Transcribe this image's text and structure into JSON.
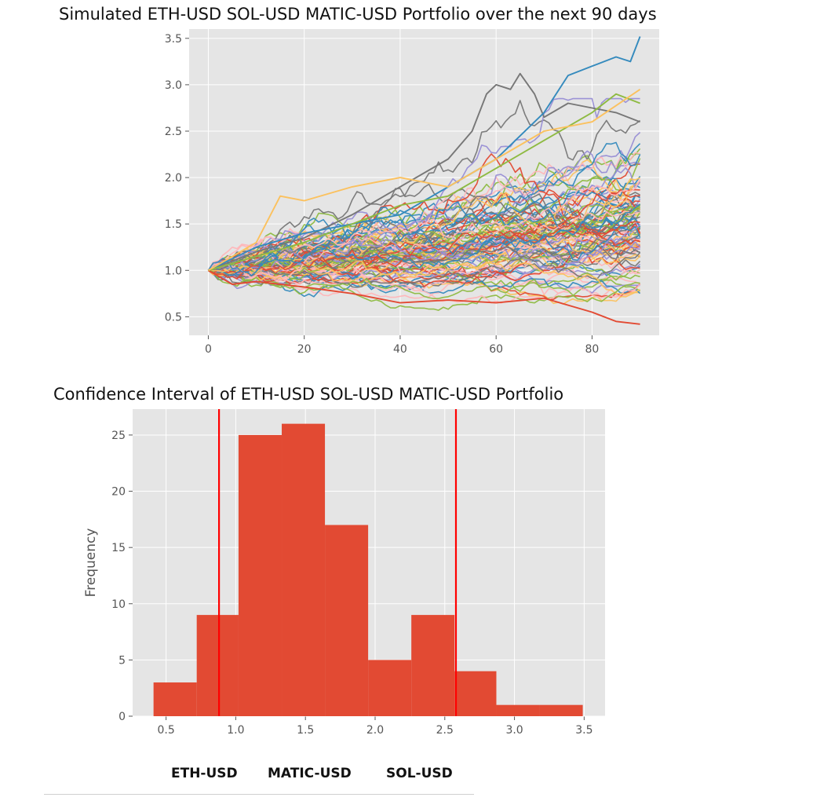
{
  "chart_data": [
    {
      "type": "line",
      "title": "Simulated ETH-USD SOL-USD MATIC-USD Portfolio over the next 90 days",
      "xlabel": "",
      "ylabel": "",
      "xlim": [
        -4,
        94
      ],
      "ylim": [
        0.3,
        3.6
      ],
      "x_ticks": [
        0,
        20,
        40,
        60,
        80
      ],
      "y_ticks": [
        0.5,
        1.0,
        1.5,
        2.0,
        2.5,
        3.0,
        3.5
      ],
      "x_tick_labels": [
        "0",
        "20",
        "40",
        "60",
        "80"
      ],
      "y_tick_labels": [
        "0.5",
        "1.0",
        "1.5",
        "2.0",
        "2.5",
        "3.0",
        "3.5"
      ],
      "grid": true,
      "num_simulations": 100,
      "days": 90,
      "start_value": 1.0,
      "highlighted_series": [
        {
          "color": "#777777",
          "points": [
            [
              0,
              1.0
            ],
            [
              10,
              1.2
            ],
            [
              20,
              1.35
            ],
            [
              30,
              1.6
            ],
            [
              40,
              1.9
            ],
            [
              50,
              2.2
            ],
            [
              55,
              2.5
            ],
            [
              58,
              2.9
            ],
            [
              60,
              3.0
            ],
            [
              63,
              2.95
            ],
            [
              65,
              3.12
            ],
            [
              68,
              2.9
            ],
            [
              70,
              2.65
            ],
            [
              75,
              2.8
            ],
            [
              80,
              2.75
            ],
            [
              85,
              2.7
            ],
            [
              90,
              2.6
            ]
          ]
        },
        {
          "color": "#348abd",
          "points": [
            [
              0,
              1.0
            ],
            [
              10,
              1.25
            ],
            [
              20,
              1.4
            ],
            [
              30,
              1.5
            ],
            [
              40,
              1.6
            ],
            [
              50,
              1.9
            ],
            [
              60,
              2.2
            ],
            [
              70,
              2.7
            ],
            [
              75,
              3.1
            ],
            [
              80,
              3.2
            ],
            [
              85,
              3.3
            ],
            [
              88,
              3.25
            ],
            [
              90,
              3.52
            ]
          ]
        },
        {
          "color": "#e24a33",
          "points": [
            [
              0,
              1.0
            ],
            [
              5,
              0.85
            ],
            [
              10,
              0.88
            ],
            [
              20,
              0.82
            ],
            [
              30,
              0.75
            ],
            [
              40,
              0.65
            ],
            [
              50,
              0.68
            ],
            [
              60,
              0.65
            ],
            [
              70,
              0.7
            ],
            [
              80,
              0.55
            ],
            [
              85,
              0.45
            ],
            [
              90,
              0.42
            ]
          ]
        },
        {
          "color": "#8eba42",
          "points": [
            [
              0,
              1.0
            ],
            [
              10,
              1.15
            ],
            [
              20,
              1.3
            ],
            [
              30,
              1.5
            ],
            [
              40,
              1.7
            ],
            [
              50,
              1.8
            ],
            [
              60,
              2.1
            ],
            [
              70,
              2.4
            ],
            [
              80,
              2.7
            ],
            [
              85,
              2.9
            ],
            [
              90,
              2.8
            ]
          ]
        },
        {
          "color": "#fbc15e",
          "points": [
            [
              0,
              1.0
            ],
            [
              10,
              1.3
            ],
            [
              15,
              1.8
            ],
            [
              20,
              1.75
            ],
            [
              30,
              1.9
            ],
            [
              40,
              2.0
            ],
            [
              50,
              1.9
            ],
            [
              60,
              2.2
            ],
            [
              70,
              2.5
            ],
            [
              80,
              2.6
            ],
            [
              90,
              2.95
            ]
          ]
        }
      ]
    },
    {
      "type": "bar",
      "title": "Confidence Interval of ETH-USD SOL-USD MATIC-USD Portfolio",
      "xlabel": "",
      "ylabel": "Frequency",
      "bin_edges": [
        0.41,
        0.72,
        1.02,
        1.33,
        1.64,
        1.95,
        2.26,
        2.57,
        2.87,
        3.18,
        3.49
      ],
      "values": [
        3,
        9,
        25,
        26,
        17,
        5,
        9,
        4,
        1,
        1
      ],
      "bar_color": "#e24a33",
      "confidence_lines": [
        0.88,
        2.58
      ],
      "line_color": "#ff0000",
      "xlim": [
        0.26,
        3.65
      ],
      "ylim": [
        0,
        27.3
      ],
      "x_ticks": [
        0.5,
        1.0,
        1.5,
        2.0,
        2.5,
        3.0,
        3.5
      ],
      "y_ticks": [
        0,
        5,
        10,
        15,
        20,
        25
      ],
      "x_tick_labels": [
        "0.5",
        "1.0",
        "1.5",
        "2.0",
        "2.5",
        "3.0",
        "3.5"
      ],
      "y_tick_labels": [
        "0",
        "5",
        "10",
        "15",
        "20",
        "25"
      ],
      "grid": true
    }
  ],
  "table": {
    "columns": [
      "ETH-USD",
      "MATIC-USD",
      "SOL-USD"
    ]
  }
}
